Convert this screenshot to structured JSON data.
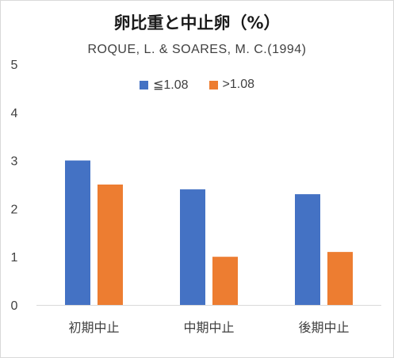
{
  "chart_data": {
    "type": "bar",
    "title": "卵比重と中止卵（%）",
    "subtitle": "ROQUE, L. & SOARES, M. C.(1994)",
    "categories": [
      "初期中止",
      "中期中止",
      "後期中止"
    ],
    "series": [
      {
        "name": "≦1.08",
        "values": [
          3.0,
          2.4,
          2.3
        ],
        "color": "#4472c4"
      },
      {
        "name": ">1.08",
        "values": [
          2.5,
          1.0,
          1.1
        ],
        "color": "#ed7d31"
      }
    ],
    "ylim": [
      0,
      5
    ],
    "yticks": [
      0,
      1,
      2,
      3,
      4,
      5
    ],
    "grid": false,
    "legend_position": "top"
  }
}
